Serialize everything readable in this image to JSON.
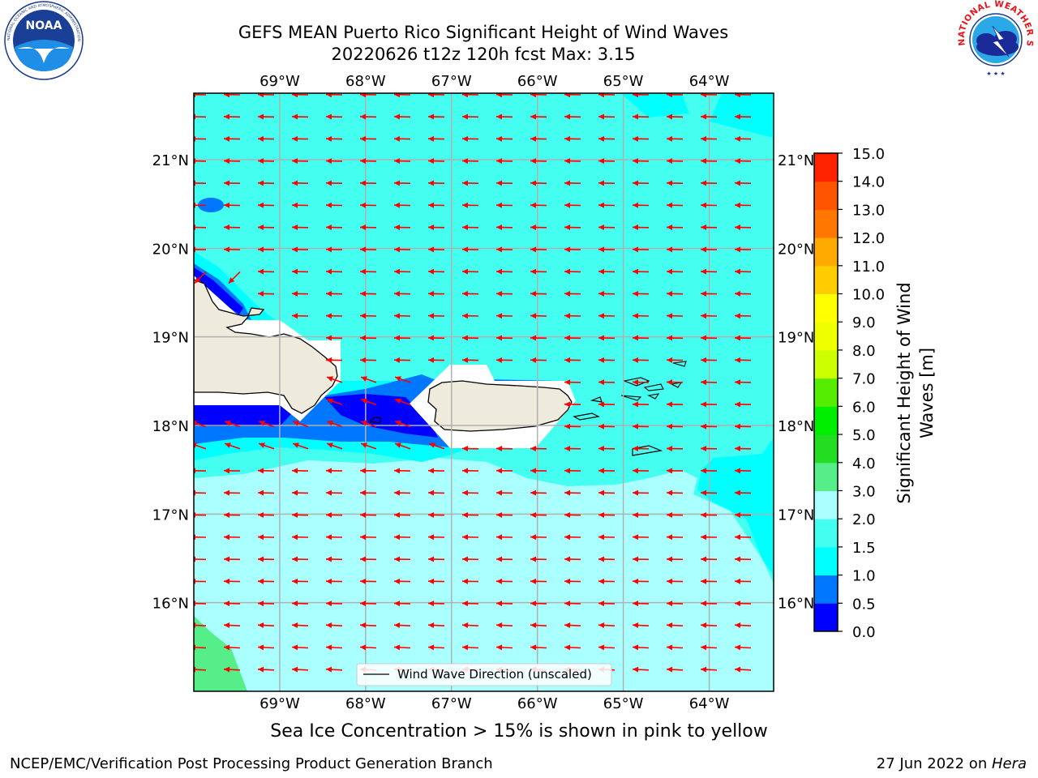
{
  "title": {
    "line1": "GEFS MEAN Puerto Rico Significant Height of Wind Waves",
    "line2": "20220626 t12z 120h fcst   Max: 3.15"
  },
  "map": {
    "lon_range": [
      -70.0,
      -63.25
    ],
    "lat_range": [
      15.0,
      21.75
    ],
    "lon_ticks": [
      "69°W",
      "68°W",
      "67°W",
      "66°W",
      "65°W",
      "64°W"
    ],
    "lat_ticks": [
      "16°N",
      "17°N",
      "18°N",
      "19°N",
      "20°N",
      "21°N"
    ],
    "legend_label": "Wind Wave Direction (unscaled)",
    "arrow_color": "#ff0000",
    "land_color": "#efebdc",
    "gridlines": true
  },
  "colorbar": {
    "label": "Significant Height of Wind Waves [m]",
    "label_line1": "Significant Height of Wind",
    "label_line2": "Waves [m]",
    "ticks": [
      "0.0",
      "0.5",
      "1.0",
      "1.5",
      "2.0",
      "3.0",
      "4.0",
      "5.0",
      "6.0",
      "7.0",
      "8.0",
      "9.0",
      "10.0",
      "11.0",
      "12.0",
      "13.0",
      "14.0",
      "15.0"
    ],
    "colors": [
      "#0000ff",
      "#0077ff",
      "#00ffff",
      "#44fff0",
      "#aaffff",
      "#55ee88",
      "#22dd22",
      "#00ee00",
      "#55ee00",
      "#ccff00",
      "#eeff00",
      "#ffff00",
      "#ffcc00",
      "#ffaa00",
      "#ff7700",
      "#ff5500",
      "#ff2200",
      "#ff0000"
    ]
  },
  "notes": {
    "ice": "Sea Ice Concentration > 15% is shown in pink to yellow",
    "footer_left": "NCEP/EMC/Verification Post Processing Product Generation Branch",
    "footer_right_prefix": "27 Jun 2022 on ",
    "footer_right_host": "Hera"
  },
  "logos": {
    "noaa_text": "NOAA",
    "noaa_ring": "NATIONAL OCEANIC AND ATMOSPHERIC ADMINISTRATION · U.S. DEPARTMENT OF COMMERCE",
    "nws_ring": "NATIONAL WEATHER SERVICE"
  }
}
